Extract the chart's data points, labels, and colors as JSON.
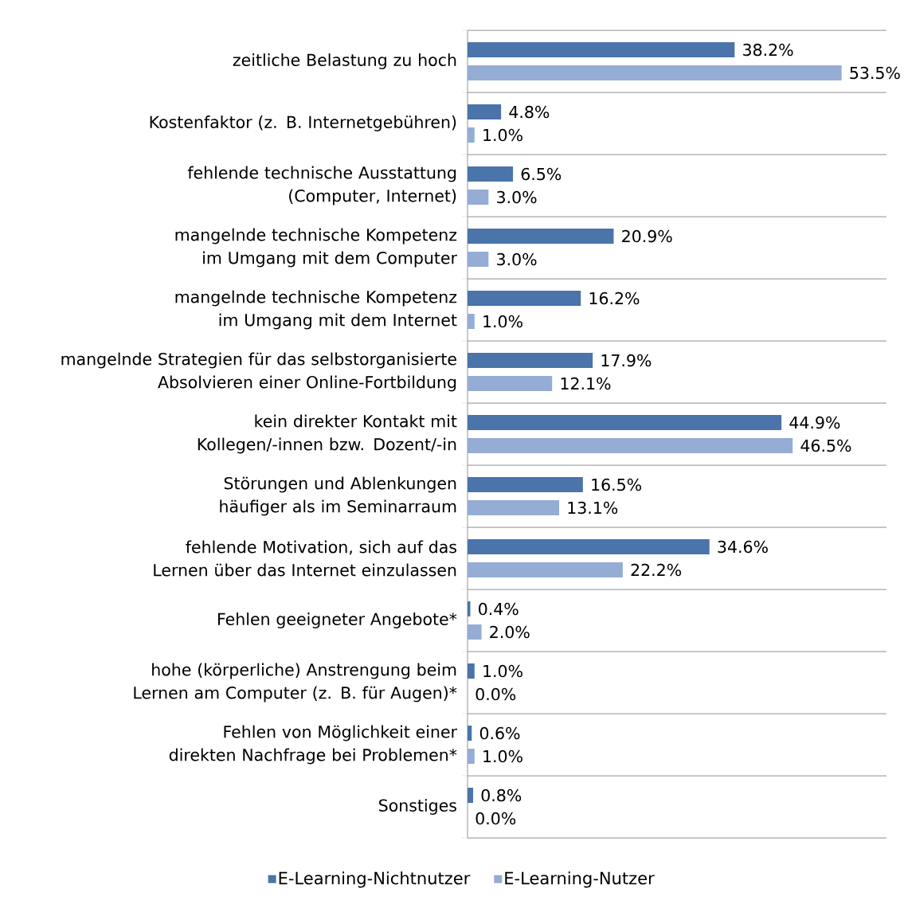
{
  "chart_data": {
    "type": "bar",
    "orientation": "horizontal",
    "categories": [
      "zeitliche Belastung zu hoch",
      "Kostenfaktor (z. B. Internetgebühren)",
      "fehlende technische Ausstattung (Computer, Internet)",
      "mangelnde technische Kompetenz im Umgang mit dem Computer",
      "mangelnde technische Kompetenz im Umgang mit dem Internet",
      "mangelnde Strategien für das selbstorganisierte Absolvieren einer Online-Fortbildung",
      "kein direkter Kontakt mit Kollegen/-innen bzw. Dozent/-in",
      "Störungen und Ablenkungen häufiger als im Seminarraum",
      "fehlende Motivation, sich auf das Lernen über das Internet einzulassen",
      "Fehlen geeigneter Angebote*",
      "hohe (körperliche) Anstrengung beim Lernen am Computer (z. B. für Augen)*",
      "Fehlen von Möglichkeit einer direkten Nachfrage bei Problemen*",
      "Sonstiges"
    ],
    "series": [
      {
        "name": "E-Learning-Nichtnutzer",
        "color": "#4a74aa",
        "values": [
          38.2,
          4.8,
          6.5,
          20.9,
          16.2,
          17.9,
          44.9,
          16.5,
          34.6,
          0.4,
          1.0,
          0.6,
          0.8
        ],
        "value_labels": [
          "38.2%",
          "4.8%",
          "6.5%",
          "20.9%",
          "16.2%",
          "17.9%",
          "44.9%",
          "16.5%",
          "34.6%",
          "0.4%",
          "1.0%",
          "0.6%",
          "0.8%"
        ]
      },
      {
        "name": "E-Learning-Nutzer",
        "color": "#95acd4",
        "values": [
          53.5,
          1.0,
          3.0,
          3.0,
          1.0,
          12.1,
          46.5,
          13.1,
          22.2,
          2.0,
          0.0,
          1.0,
          0.0
        ],
        "value_labels": [
          "53.5%",
          "1.0%",
          "3.0%",
          "3.0%",
          "1.0%",
          "12.1%",
          "46.5%",
          "13.1%",
          "22.2%",
          "2.0%",
          "0.0%",
          "1.0%",
          "0.0%"
        ]
      }
    ],
    "grid": "y",
    "legend": "bottom",
    "tick_labels": "y"
  }
}
